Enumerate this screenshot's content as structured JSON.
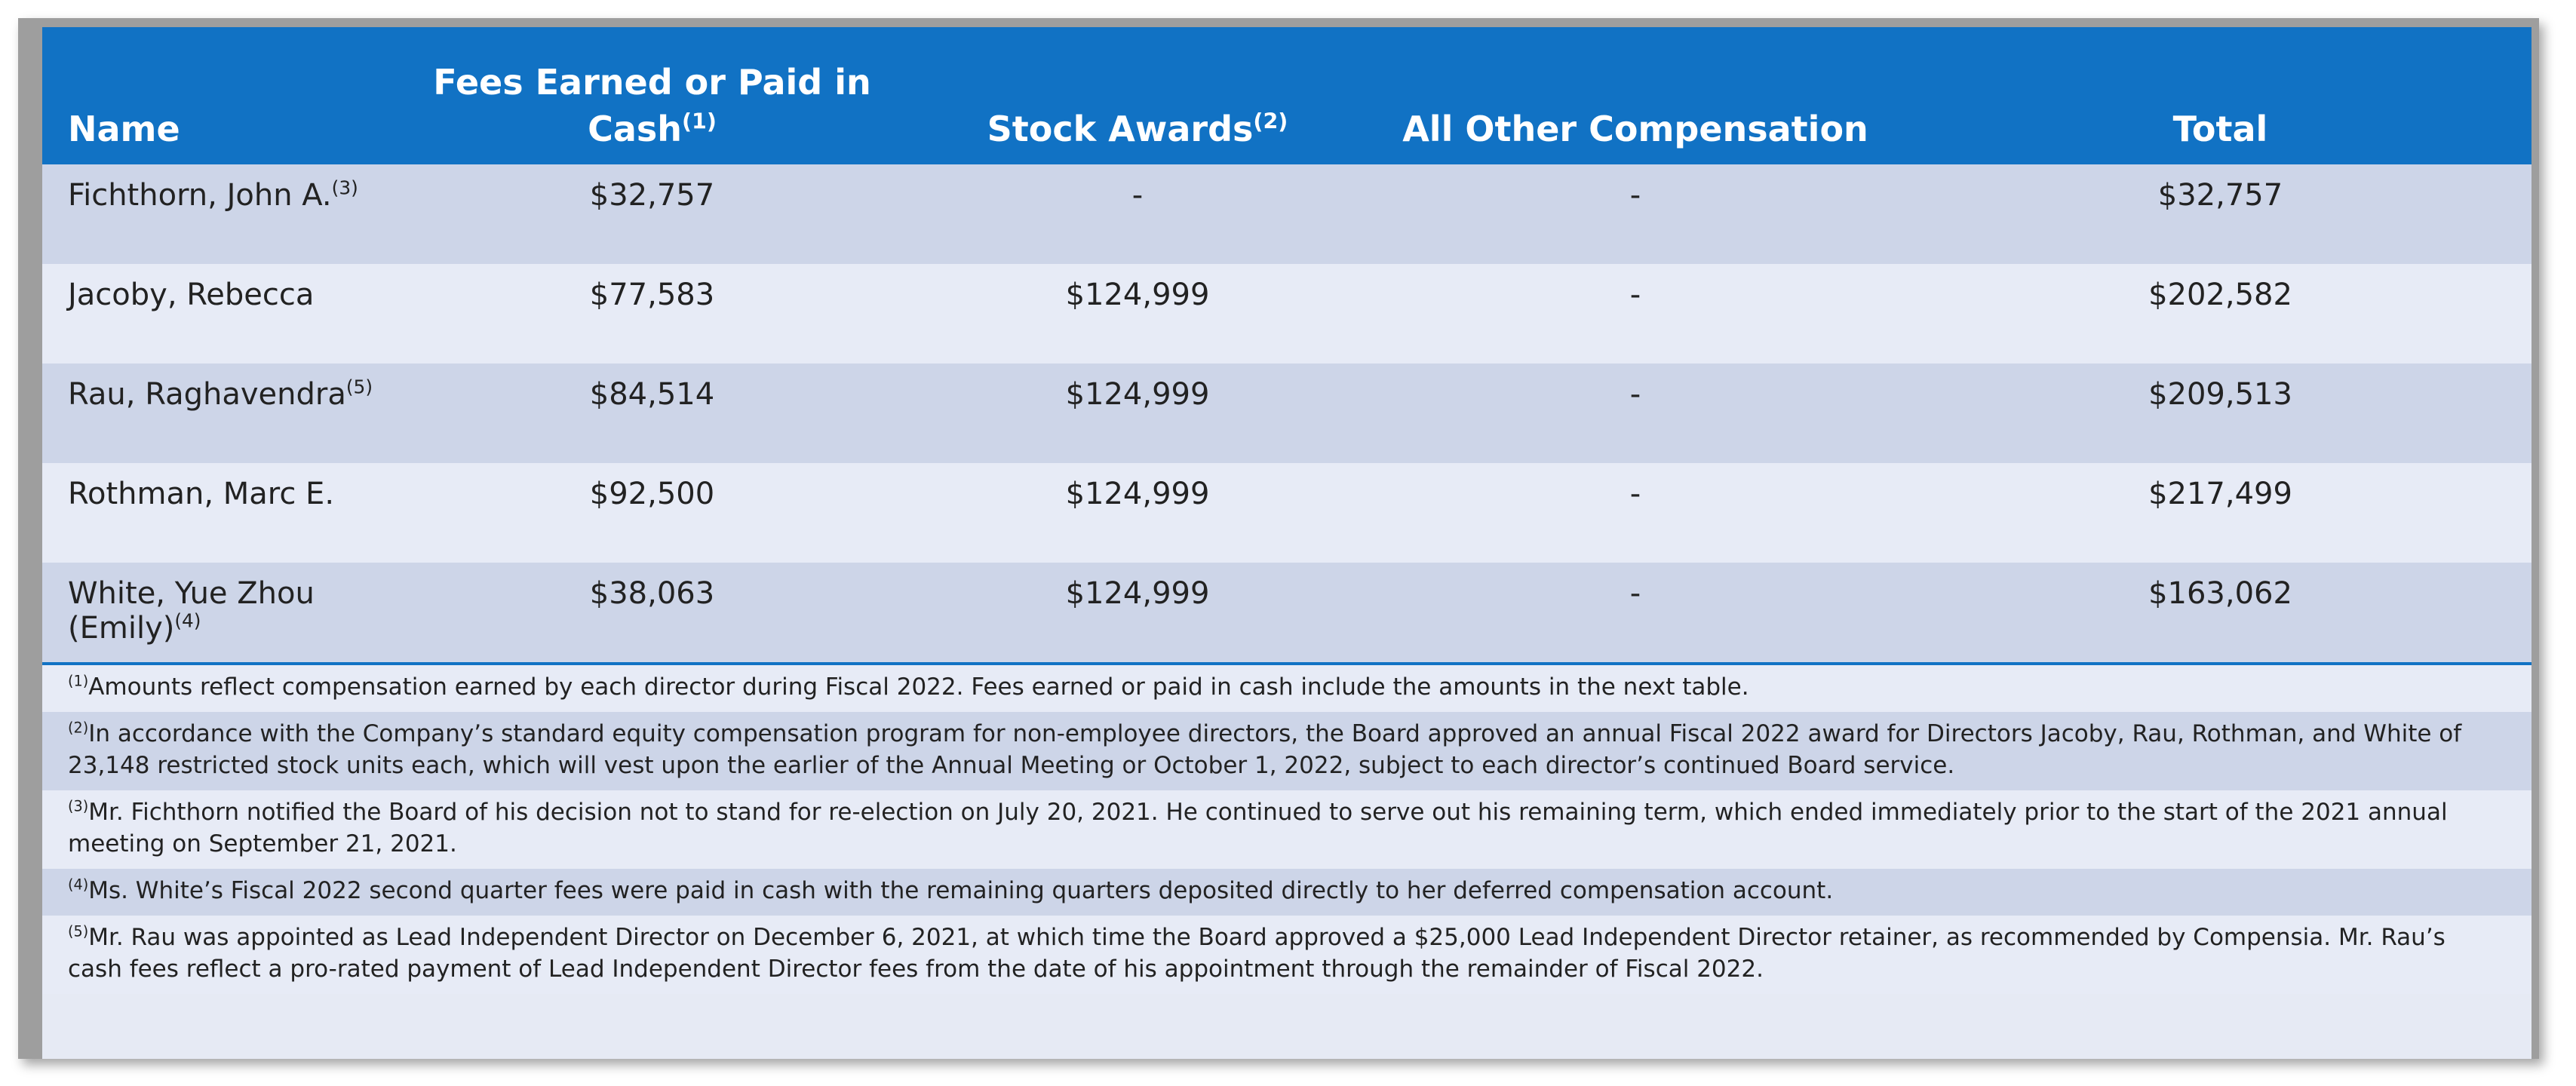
{
  "table": {
    "headers": {
      "name": "Name",
      "fees_line1": "Fees Earned or Paid in",
      "fees_line2": "Cash",
      "fees_sup": "(1)",
      "stock": "Stock Awards",
      "stock_sup": "(2)",
      "other": "All Other Compensation",
      "total": "Total"
    },
    "rows": [
      {
        "name": "Fichthorn, John A.",
        "sup": "(3)",
        "fees": "$32,757",
        "stock": "-",
        "other": "-",
        "total": "$32,757"
      },
      {
        "name": "Jacoby, Rebecca",
        "sup": "",
        "fees": "$77,583",
        "stock": "$124,999",
        "other": "-",
        "total": "$202,582"
      },
      {
        "name": "Rau, Raghavendra",
        "sup": "(5)",
        "fees": "$84,514",
        "stock": "$124,999",
        "other": "-",
        "total": "$209,513"
      },
      {
        "name": "Rothman, Marc E.",
        "sup": "",
        "fees": "$92,500",
        "stock": "$124,999",
        "other": "-",
        "total": "$217,499"
      },
      {
        "name": "White, Yue Zhou (Emily)",
        "sup": "(4)",
        "fees": "$38,063",
        "stock": "$124,999",
        "other": "-",
        "total": "$163,062"
      }
    ]
  },
  "footnotes": [
    {
      "sup": "(1)",
      "text": "Amounts reflect compensation earned by each director during Fiscal 2022.  Fees earned or paid in cash include the amounts in the next table."
    },
    {
      "sup": "(2)",
      "text": "In accordance with the Company’s standard equity compensation program for non-employee directors, the Board approved an annual Fiscal 2022 award for Directors Jacoby, Rau, Rothman, and White of 23,148 restricted stock units each, which will vest upon the earlier of the Annual Meeting or October 1, 2022, subject to each director’s continued Board service."
    },
    {
      "sup": "(3)",
      "text": "Mr. Fichthorn notified the Board of his decision not to stand for re-election on July 20, 2021.  He continued to serve out his remaining term, which ended immediately prior to the start of the 2021 annual meeting on September 21, 2021."
    },
    {
      "sup": "(4)",
      "text": "Ms. White’s Fiscal 2022 second quarter fees were paid in cash with the remaining quarters deposited directly to her deferred compensation account."
    },
    {
      "sup": "(5)",
      "text": "Mr. Rau was appointed as Lead Independent Director on December 6, 2021, at which time the Board approved a $25,000 Lead Independent Director retainer, as recommended by Compensia.  Mr. Rau’s cash fees reflect a pro-rated payment of Lead Independent Director fees from the date of his appointment through the remainder of Fiscal 2022."
    }
  ],
  "colors": {
    "header_bg": "#1172c4",
    "row_dark": "#cdd5e8",
    "row_light": "#e7ebf6",
    "frame": "#9e9e9e"
  }
}
